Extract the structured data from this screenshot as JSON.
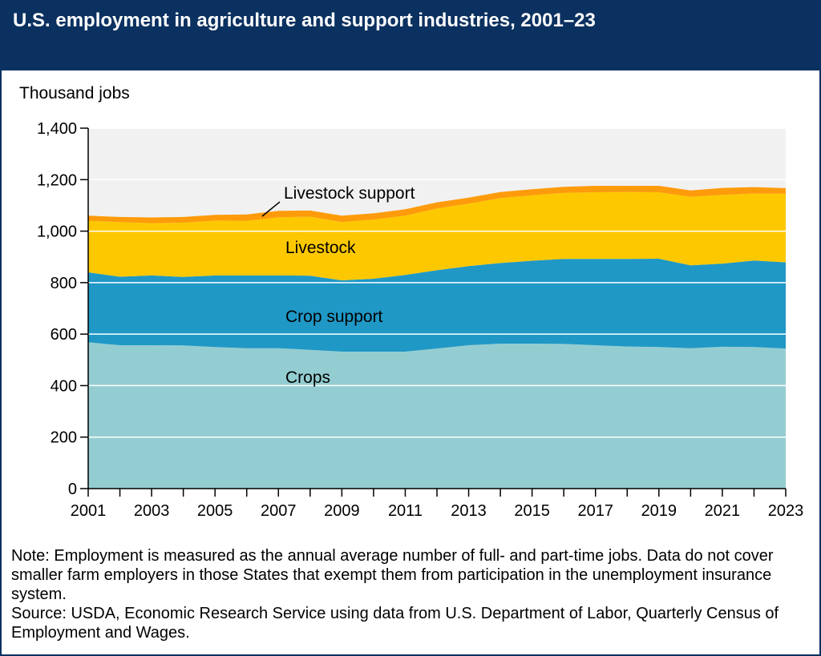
{
  "title": "U.S. employment in agriculture and support industries, 2001–23",
  "y_unit_label": "Thousand jobs",
  "notes": {
    "note": "Note: Employment is measured as the annual average number of full- and part-time jobs. Data do not cover smaller farm employers in those States that exempt them from participation in the unemployment insurance system.",
    "source": "Source: USDA, Economic Research Service using data from U.S. Department of Labor, Quarterly Census of Employment and Wages."
  },
  "chart_data": {
    "type": "area",
    "stacked": true,
    "x": [
      2001,
      2002,
      2003,
      2004,
      2005,
      2006,
      2007,
      2008,
      2009,
      2010,
      2011,
      2012,
      2013,
      2014,
      2015,
      2016,
      2017,
      2018,
      2019,
      2020,
      2021,
      2022,
      2023
    ],
    "x_tick_labels": [
      "2001",
      "2003",
      "2005",
      "2007",
      "2009",
      "2011",
      "2013",
      "2015",
      "2017",
      "2019",
      "2021",
      "2023"
    ],
    "y_tick_labels": [
      "0",
      "200",
      "400",
      "600",
      "800",
      "1,000",
      "1,200",
      "1,400"
    ],
    "ylim": [
      0,
      1400
    ],
    "grid": "horizontal",
    "series": [
      {
        "name": "Crops",
        "color": "#94cdd1",
        "values": [
          568,
          557,
          557,
          556,
          550,
          545,
          545,
          539,
          532,
          532,
          532,
          544,
          557,
          563,
          563,
          562,
          557,
          552,
          550,
          545,
          551,
          550,
          544
        ]
      },
      {
        "name": "Crop support",
        "color": "#1f98c6",
        "values": [
          272,
          266,
          271,
          266,
          278,
          283,
          283,
          288,
          277,
          283,
          298,
          304,
          307,
          313,
          322,
          330,
          335,
          340,
          343,
          322,
          323,
          336,
          335
        ]
      },
      {
        "name": "Livestock",
        "color": "#fdc800",
        "values": [
          200,
          212,
          203,
          211,
          213,
          212,
          226,
          229,
          226,
          230,
          230,
          240,
          243,
          252,
          254,
          257,
          259,
          260,
          258,
          266,
          267,
          260,
          267
        ]
      },
      {
        "name": "Livestock support",
        "color": "#fe9b0b",
        "values": [
          20,
          20,
          22,
          22,
          22,
          25,
          25,
          24,
          25,
          24,
          25,
          24,
          23,
          24,
          24,
          23,
          25,
          24,
          25,
          25,
          27,
          25,
          21
        ]
      }
    ],
    "series_labels": [
      "Livestock support",
      "Livestock",
      "Crop support",
      "Crops"
    ]
  }
}
